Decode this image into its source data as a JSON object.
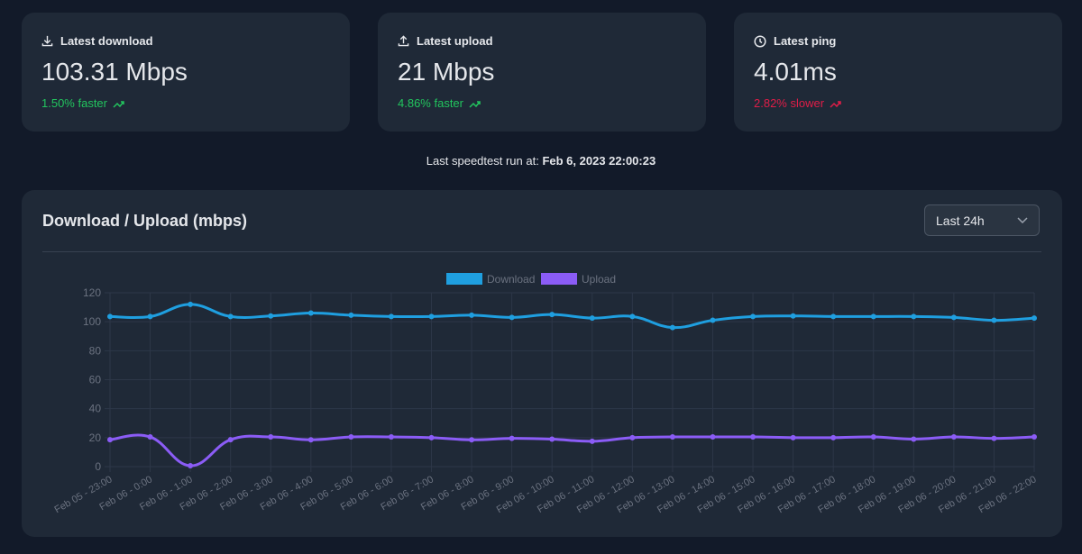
{
  "cards": [
    {
      "label": "Latest download",
      "value": "103.31 Mbps",
      "change": "1.50% faster",
      "trend": "up-good"
    },
    {
      "label": "Latest upload",
      "value": "21 Mbps",
      "change": "4.86% faster",
      "trend": "up-good"
    },
    {
      "label": "Latest ping",
      "value": "4.01ms",
      "change": "2.82% slower",
      "trend": "up-bad"
    }
  ],
  "last_run": {
    "label": "Last speedtest run at:",
    "time": "Feb 6, 2023 22:00:23"
  },
  "range_select": "Last 24h",
  "chart_data": {
    "type": "line",
    "title": "Download / Upload (mbps)",
    "categories": [
      "Feb 05 - 23:00",
      "Feb 06 - 0:00",
      "Feb 06 - 1:00",
      "Feb 06 - 2:00",
      "Feb 06 - 3:00",
      "Feb 06 - 4:00",
      "Feb 06 - 5:00",
      "Feb 06 - 6:00",
      "Feb 06 - 7:00",
      "Feb 06 - 8:00",
      "Feb 06 - 9:00",
      "Feb 06 - 10:00",
      "Feb 06 - 11:00",
      "Feb 06 - 12:00",
      "Feb 06 - 13:00",
      "Feb 06 - 14:00",
      "Feb 06 - 15:00",
      "Feb 06 - 16:00",
      "Feb 06 - 17:00",
      "Feb 06 - 18:00",
      "Feb 06 - 19:00",
      "Feb 06 - 20:00",
      "Feb 06 - 21:00",
      "Feb 06 - 22:00"
    ],
    "series": [
      {
        "name": "Download",
        "color": "#1f9fe0",
        "values": [
          103.6,
          103.6,
          112,
          103.6,
          104,
          106,
          104.5,
          103.6,
          103.6,
          104.5,
          103,
          105,
          102.5,
          103.6,
          96,
          101,
          103.6,
          104,
          103.6,
          103.6,
          103.6,
          103,
          101,
          102.5
        ]
      },
      {
        "name": "Upload",
        "color": "#8b5cf6",
        "values": [
          18.6,
          20.5,
          0.6,
          18.6,
          20.5,
          18.5,
          20.5,
          20.5,
          20,
          18.5,
          19.5,
          19,
          17.5,
          20,
          20.5,
          20.5,
          20.5,
          20,
          20,
          20.5,
          19,
          20.5,
          19.5,
          20.5
        ]
      }
    ],
    "ylim": [
      0,
      120
    ],
    "yticks": [
      0,
      20,
      40,
      60,
      80,
      100,
      120
    ],
    "grid": true,
    "legend": "top"
  }
}
